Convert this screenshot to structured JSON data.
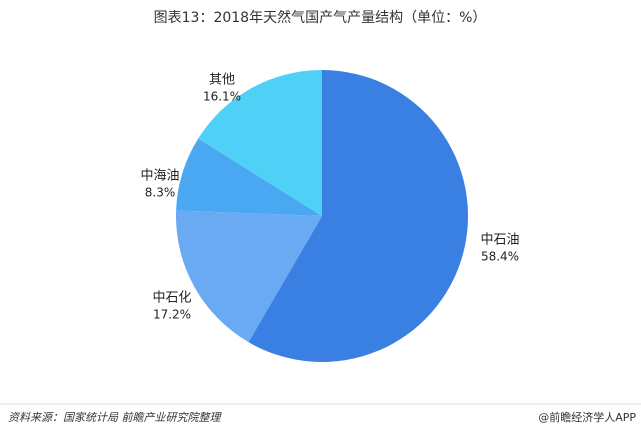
{
  "chart_data": {
    "type": "pie",
    "title": "图表13：2018年天然气国产气产量结构（单位：%）",
    "categories": [
      "中石油",
      "中石化",
      "中海油",
      "其他"
    ],
    "values": [
      58.4,
      17.2,
      8.3,
      16.1
    ],
    "value_labels": [
      "58.4%",
      "17.2%",
      "8.3%",
      "16.1%"
    ],
    "colors": [
      "#3a7fe2",
      "#6aaaf2",
      "#4aa8f2",
      "#4fd0f7"
    ],
    "source": "资料来源：国家统计局 前瞻产业研究院整理",
    "credit": "@前瞻经济学人APP"
  }
}
